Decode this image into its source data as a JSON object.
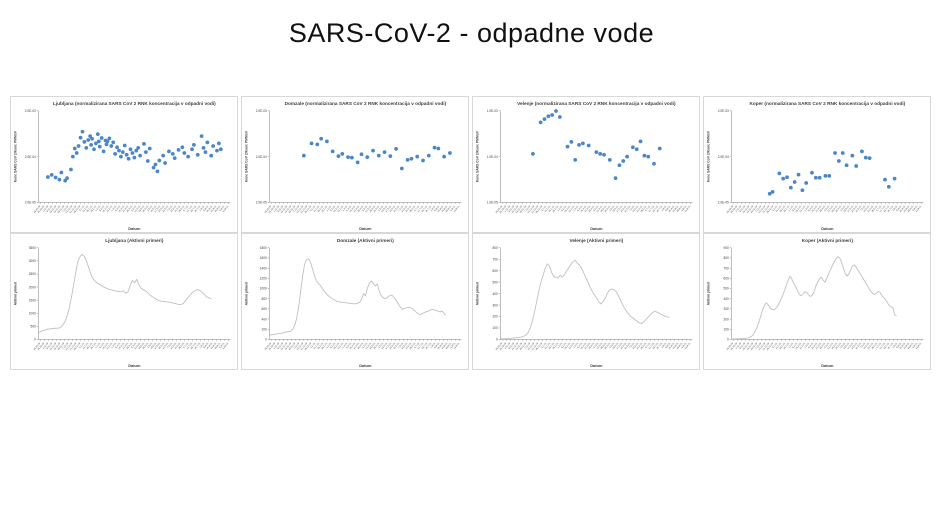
{
  "page": {
    "title": "SARS-CoV-2 - odpadne vode"
  },
  "colors": {
    "point": "#4a86c8",
    "line": "#bfbfbf",
    "axis": "#7f7f7f",
    "text": "#404040",
    "panel_border": "#d8d8d8",
    "background": "#ffffff"
  },
  "date_ticks": [
    "19.10.20",
    "26.10.20",
    "2.11.20",
    "9.11.20",
    "16.11.20",
    "23.11.20",
    "30.11.20",
    "7.12.20",
    "14.12.20",
    "21.12.20",
    "28.12.20",
    "4.1.21",
    "11.1.21",
    "18.1.21",
    "25.1.21",
    "1.2.21",
    "8.2.21",
    "15.2.21",
    "22.2.21",
    "1.3.21",
    "8.3.21",
    "15.3.21",
    "22.3.21",
    "29.3.21",
    "5.4.21",
    "12.4.21",
    "19.4.21",
    "26.4.21",
    "3.5.21",
    "10.5.21",
    "17.5.21",
    "24.5.21",
    "31.5.21",
    "7.6.21",
    "14.6.21",
    "21.6.21",
    "28.6.21",
    "5.7.21",
    "12.7.21",
    "19.7.21",
    "26.7.21",
    "2.8.21",
    "9.8.21",
    "16.8.21",
    "23.8.21",
    "30.8.21",
    "6.9.21",
    "13.9.21"
  ],
  "chart_data": [
    {
      "id": "ljubljana-concentration",
      "type": "scatter",
      "title": "Ljubljana (normalizirana SARS CoV 2 RNK koncentracija v odpadni vodi)",
      "xlabel": "Datum",
      "ylabel": "Konc SARS CoV 2/Konc PMMoV",
      "yscale": "log",
      "ylim": [
        2e-05,
        0.002
      ],
      "yticks": [
        {
          "v": 0.002,
          "label": "2.0E-03"
        },
        {
          "v": 0.0002,
          "label": "2.0E-04"
        },
        {
          "v": 2e-05,
          "label": "2.0E-05"
        }
      ],
      "grid": false,
      "legend": false,
      "points": [
        [
          0.05,
          7.2e-05
        ],
        [
          0.07,
          8e-05
        ],
        [
          0.09,
          7e-05
        ],
        [
          0.11,
          6.3e-05
        ],
        [
          0.12,
          9e-05
        ],
        [
          0.14,
          6e-05
        ],
        [
          0.15,
          6.8e-05
        ],
        [
          0.17,
          0.000105
        ],
        [
          0.18,
          0.0002
        ],
        [
          0.19,
          0.0003
        ],
        [
          0.2,
          0.00024
        ],
        [
          0.21,
          0.00034
        ],
        [
          0.22,
          0.00052
        ],
        [
          0.23,
          0.0007
        ],
        [
          0.24,
          0.00042
        ],
        [
          0.25,
          0.00031
        ],
        [
          0.26,
          0.00046
        ],
        [
          0.27,
          0.00056
        ],
        [
          0.275,
          0.00036
        ],
        [
          0.28,
          0.00049
        ],
        [
          0.29,
          0.00029
        ],
        [
          0.3,
          0.00039
        ],
        [
          0.31,
          0.00062
        ],
        [
          0.315,
          0.00043
        ],
        [
          0.32,
          0.00033
        ],
        [
          0.33,
          0.00051
        ],
        [
          0.34,
          0.00026
        ],
        [
          0.35,
          0.00045
        ],
        [
          0.355,
          0.00037
        ],
        [
          0.36,
          0.00043
        ],
        [
          0.37,
          0.0005
        ],
        [
          0.38,
          0.00034
        ],
        [
          0.39,
          0.00041
        ],
        [
          0.4,
          0.00023
        ],
        [
          0.41,
          0.00032
        ],
        [
          0.42,
          0.00027
        ],
        [
          0.43,
          0.0002
        ],
        [
          0.44,
          0.00025
        ],
        [
          0.45,
          0.00035
        ],
        [
          0.46,
          0.00022
        ],
        [
          0.47,
          0.00018
        ],
        [
          0.48,
          0.00029
        ],
        [
          0.49,
          0.00024
        ],
        [
          0.5,
          0.00019
        ],
        [
          0.51,
          0.00027
        ],
        [
          0.52,
          0.00031
        ],
        [
          0.53,
          0.00021
        ],
        [
          0.55,
          0.00038
        ],
        [
          0.56,
          0.00025
        ],
        [
          0.57,
          0.00016
        ],
        [
          0.58,
          0.0003
        ],
        [
          0.6,
          0.000115
        ],
        [
          0.61,
          0.000135
        ],
        [
          0.62,
          9.5e-05
        ],
        [
          0.63,
          0.000165
        ],
        [
          0.65,
          0.00021
        ],
        [
          0.66,
          0.000145
        ],
        [
          0.68,
          0.00026
        ],
        [
          0.7,
          0.00023
        ],
        [
          0.71,
          0.000185
        ],
        [
          0.73,
          0.00028
        ],
        [
          0.75,
          0.00032
        ],
        [
          0.76,
          0.00024
        ],
        [
          0.78,
          0.0002
        ],
        [
          0.8,
          0.00029
        ],
        [
          0.81,
          0.00036
        ],
        [
          0.83,
          0.00022
        ],
        [
          0.85,
          0.00056
        ],
        [
          0.86,
          0.00031
        ],
        [
          0.87,
          0.00025
        ],
        [
          0.88,
          0.00041
        ],
        [
          0.9,
          0.00021
        ],
        [
          0.91,
          0.00034
        ],
        [
          0.93,
          0.00027
        ],
        [
          0.94,
          0.00039
        ],
        [
          0.95,
          0.00029
        ]
      ]
    },
    {
      "id": "domzale-concentration",
      "type": "scatter",
      "title": "Domzale (normalizirana SARS CoV 2 RNK koncentracija v odpadni vodi)",
      "xlabel": "Datum",
      "ylabel": "Konc SARS CoV 2/Konc PMMoV",
      "yscale": "log",
      "ylim": [
        2e-05,
        0.002
      ],
      "yticks": [
        {
          "v": 0.002,
          "label": "2.0E-03"
        },
        {
          "v": 0.0002,
          "label": "2.0E-04"
        },
        {
          "v": 2e-05,
          "label": "2.0E-05"
        }
      ],
      "grid": false,
      "legend": false,
      "points": [
        [
          0.18,
          0.00021
        ],
        [
          0.22,
          0.00039
        ],
        [
          0.25,
          0.00037
        ],
        [
          0.27,
          0.00049
        ],
        [
          0.3,
          0.00043
        ],
        [
          0.33,
          0.00026
        ],
        [
          0.36,
          0.000205
        ],
        [
          0.38,
          0.00023
        ],
        [
          0.41,
          0.000195
        ],
        [
          0.43,
          0.00019
        ],
        [
          0.46,
          0.00015
        ],
        [
          0.48,
          0.000225
        ],
        [
          0.51,
          0.000195
        ],
        [
          0.54,
          0.00027
        ],
        [
          0.57,
          0.00021
        ],
        [
          0.6,
          0.00025
        ],
        [
          0.63,
          0.000205
        ],
        [
          0.66,
          0.000295
        ],
        [
          0.69,
          0.00011
        ],
        [
          0.72,
          0.00017
        ],
        [
          0.74,
          0.00018
        ],
        [
          0.77,
          0.0002
        ],
        [
          0.8,
          0.000165
        ],
        [
          0.83,
          0.00021
        ],
        [
          0.86,
          0.000315
        ],
        [
          0.88,
          0.0003
        ],
        [
          0.91,
          0.0002
        ],
        [
          0.94,
          0.00024
        ]
      ]
    },
    {
      "id": "velenje-concentration",
      "type": "scatter",
      "title": "Velenje (normalizirana SARS CoV 2 RNK koncentracija v odpadni vodi)",
      "xlabel": "Datum",
      "ylabel": "Konc SARS CoV 2/Konc PMMoV",
      "yscale": "log",
      "ylim": [
        1e-05,
        0.001
      ],
      "yticks": [
        {
          "v": 0.001,
          "label": "1.0E-03"
        },
        {
          "v": 0.0001,
          "label": "1.0E-04"
        },
        {
          "v": 1e-05,
          "label": "1.0E-05"
        }
      ],
      "grid": false,
      "legend": false,
      "points": [
        [
          0.17,
          0.000115
        ],
        [
          0.21,
          0.00056
        ],
        [
          0.23,
          0.00066
        ],
        [
          0.25,
          0.00076
        ],
        [
          0.27,
          0.00081
        ],
        [
          0.29,
          0.00099
        ],
        [
          0.31,
          0.00073
        ],
        [
          0.35,
          0.000165
        ],
        [
          0.37,
          0.00021
        ],
        [
          0.39,
          8.5e-05
        ],
        [
          0.41,
          0.00018
        ],
        [
          0.43,
          0.000195
        ],
        [
          0.46,
          0.000175
        ],
        [
          0.5,
          0.000125
        ],
        [
          0.52,
          0.000115
        ],
        [
          0.54,
          0.00011
        ],
        [
          0.57,
          8.5e-05
        ],
        [
          0.6,
          3.4e-05
        ],
        [
          0.62,
          6.5e-05
        ],
        [
          0.64,
          8e-05
        ],
        [
          0.66,
          0.0001
        ],
        [
          0.69,
          0.00016
        ],
        [
          0.71,
          0.000145
        ],
        [
          0.73,
          0.000215
        ],
        [
          0.75,
          0.000105
        ],
        [
          0.77,
          0.0001
        ],
        [
          0.8,
          7e-05
        ],
        [
          0.83,
          0.00015
        ]
      ]
    },
    {
      "id": "koper-concentration",
      "type": "scatter",
      "title": "Koper (normalizirana SARS CoV 2 RNK koncentracija v odpadni vodi)",
      "xlabel": "Datum",
      "ylabel": "Konc SARS CoV 2/Konc PMMoV",
      "yscale": "log",
      "ylim": [
        2e-05,
        0.002
      ],
      "yticks": [
        {
          "v": 0.002,
          "label": "2.0E-03"
        },
        {
          "v": 0.0002,
          "label": "2.0E-04"
        },
        {
          "v": 2e-05,
          "label": "2.0E-05"
        }
      ],
      "grid": false,
      "legend": false,
      "points": [
        [
          0.2,
          3.1e-05
        ],
        [
          0.215,
          3.4e-05
        ],
        [
          0.25,
          8.6e-05
        ],
        [
          0.27,
          6.6e-05
        ],
        [
          0.29,
          7.1e-05
        ],
        [
          0.31,
          4.2e-05
        ],
        [
          0.33,
          5.6e-05
        ],
        [
          0.35,
          8.1e-05
        ],
        [
          0.37,
          3.7e-05
        ],
        [
          0.39,
          5.3e-05
        ],
        [
          0.42,
          8.9e-05
        ],
        [
          0.44,
          6.9e-05
        ],
        [
          0.46,
          6.9e-05
        ],
        [
          0.49,
          7.6e-05
        ],
        [
          0.51,
          7.6e-05
        ],
        [
          0.54,
          0.00024
        ],
        [
          0.56,
          0.00016
        ],
        [
          0.58,
          0.00024
        ],
        [
          0.6,
          0.00013
        ],
        [
          0.63,
          0.00021
        ],
        [
          0.65,
          0.000125
        ],
        [
          0.68,
          0.00026
        ],
        [
          0.7,
          0.00019
        ],
        [
          0.72,
          0.000185
        ],
        [
          0.8,
          6.3e-05
        ],
        [
          0.82,
          4.4e-05
        ],
        [
          0.85,
          6.6e-05
        ]
      ]
    },
    {
      "id": "ljubljana-active-cases",
      "type": "line",
      "title": "Ljubljana (Aktivni primeri)",
      "xlabel": "Datum",
      "ylabel": "Aktivni primeri",
      "ylim": [
        0,
        3500
      ],
      "ytick_step": 500,
      "x_extent": 0.9,
      "grid": false,
      "legend": false,
      "values": [
        250,
        300,
        330,
        360,
        390,
        400,
        410,
        420,
        430,
        430,
        450,
        520,
        650,
        850,
        1150,
        1550,
        2000,
        2500,
        2950,
        3150,
        3250,
        3180,
        3000,
        2750,
        2500,
        2320,
        2220,
        2150,
        2100,
        2050,
        2000,
        1960,
        1930,
        1900,
        1880,
        1860,
        1840,
        1830,
        1820,
        1860,
        1760,
        1820,
        2060,
        2260,
        2160,
        2300,
        2080,
        1950,
        1900,
        1850,
        1780,
        1700,
        1640,
        1580,
        1530,
        1490,
        1460,
        1440,
        1450,
        1430,
        1420,
        1400,
        1380,
        1360,
        1340,
        1330,
        1360,
        1450,
        1560,
        1660,
        1760,
        1830,
        1880,
        1900,
        1850,
        1790,
        1700,
        1620,
        1590,
        1560
      ]
    },
    {
      "id": "domzale-active-cases",
      "type": "line",
      "title": "Domzale (Aktivni primeri)",
      "xlabel": "Datum",
      "ylabel": "Aktivni primeri",
      "ylim": [
        0,
        1800
      ],
      "ytick_step": 200,
      "x_extent": 0.92,
      "grid": false,
      "legend": false,
      "values": [
        80,
        90,
        95,
        100,
        110,
        115,
        120,
        130,
        140,
        150,
        155,
        165,
        200,
        280,
        420,
        650,
        950,
        1250,
        1480,
        1570,
        1580,
        1510,
        1390,
        1250,
        1150,
        1100,
        1060,
        1000,
        950,
        900,
        860,
        830,
        800,
        780,
        760,
        745,
        735,
        730,
        725,
        720,
        715,
        710,
        705,
        700,
        700,
        710,
        730,
        790,
        900,
        860,
        1010,
        1110,
        1150,
        1100,
        1050,
        1090,
        950,
        860,
        820,
        800,
        820,
        850,
        870,
        850,
        800,
        740,
        680,
        620,
        590,
        610,
        620,
        630,
        620,
        600,
        560,
        530,
        500,
        490,
        510,
        530,
        545,
        560,
        575,
        590,
        580,
        570,
        555,
        540,
        560,
        505,
        480
      ]
    },
    {
      "id": "velenje-active-cases",
      "type": "line",
      "title": "Velenje (Aktivni primeri)",
      "xlabel": "Datum",
      "ylabel": "Aktivni primeri",
      "ylim": [
        0,
        800
      ],
      "ytick_step": 100,
      "x_extent": 0.88,
      "grid": false,
      "legend": false,
      "values": [
        5,
        5,
        6,
        8,
        10,
        10,
        12,
        14,
        15,
        18,
        22,
        28,
        38,
        60,
        100,
        160,
        240,
        330,
        420,
        500,
        560,
        620,
        660,
        640,
        585,
        550,
        540,
        538,
        560,
        545,
        565,
        600,
        625,
        655,
        680,
        690,
        665,
        650,
        620,
        580,
        540,
        500,
        455,
        420,
        390,
        360,
        330,
        310,
        330,
        360,
        400,
        430,
        440,
        435,
        420,
        390,
        350,
        310,
        275,
        245,
        220,
        200,
        188,
        172,
        158,
        145,
        138,
        152,
        172,
        192,
        212,
        232,
        245,
        240,
        232,
        222,
        212,
        202,
        196,
        192
      ]
    },
    {
      "id": "koper-active-cases",
      "type": "line",
      "title": "Koper (Aktivni primeri)",
      "xlabel": "Datum",
      "ylabel": "Aktivni primeri",
      "ylim": [
        0,
        900
      ],
      "ytick_step": 100,
      "x_extent": 0.86,
      "grid": false,
      "legend": false,
      "values": [
        5,
        5,
        5,
        6,
        6,
        8,
        8,
        10,
        12,
        15,
        20,
        30,
        48,
        78,
        118,
        168,
        225,
        285,
        330,
        360,
        342,
        312,
        296,
        290,
        300,
        322,
        352,
        392,
        432,
        482,
        532,
        582,
        622,
        592,
        552,
        520,
        482,
        445,
        430,
        442,
        470,
        462,
        442,
        422,
        432,
        462,
        522,
        562,
        592,
        612,
        582,
        562,
        602,
        642,
        682,
        722,
        762,
        792,
        812,
        802,
        762,
        702,
        652,
        622,
        642,
        682,
        722,
        732,
        712,
        682,
        652,
        622,
        592,
        562,
        532,
        502,
        472,
        452,
        442,
        452,
        472,
        462,
        432,
        412,
        392,
        362,
        332,
        322,
        312,
        242,
        232
      ]
    }
  ]
}
